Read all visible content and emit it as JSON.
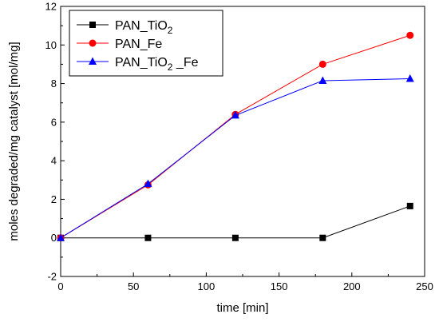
{
  "chart_data": {
    "type": "line",
    "xlabel": "time [min]",
    "ylabel": "moles degraded/mg catalyst [mol/mg]",
    "xlim": [
      0,
      250
    ],
    "ylim": [
      -2,
      12
    ],
    "xticks": [
      0,
      50,
      100,
      150,
      200,
      250
    ],
    "yticks": [
      -2,
      0,
      2,
      4,
      6,
      8,
      10,
      12
    ],
    "grid": false,
    "legend_position": "top-left",
    "x": [
      0,
      60,
      120,
      180,
      240
    ],
    "series": [
      {
        "name": "PAN_TiO2",
        "legend_base": "PAN_TiO",
        "legend_sub": "2",
        "legend_tail": "",
        "color": "#000000",
        "marker": "square",
        "values": [
          0,
          0,
          0,
          0,
          1.65
        ]
      },
      {
        "name": "PAN_Fe",
        "legend_base": "PAN_Fe",
        "legend_sub": "",
        "legend_tail": "",
        "color": "#ff0000",
        "marker": "circle",
        "values": [
          0,
          2.75,
          6.4,
          9.0,
          10.5
        ]
      },
      {
        "name": "PAN_TiO2_Fe",
        "legend_base": "PAN_TiO",
        "legend_sub": "2",
        "legend_tail": "_Fe",
        "color": "#0000ff",
        "marker": "triangle",
        "values": [
          0,
          2.8,
          6.35,
          8.15,
          8.25
        ]
      }
    ]
  }
}
